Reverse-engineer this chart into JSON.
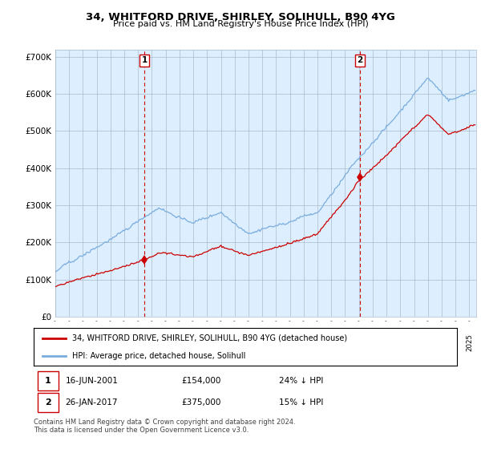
{
  "title": "34, WHITFORD DRIVE, SHIRLEY, SOLIHULL, B90 4YG",
  "subtitle": "Price paid vs. HM Land Registry's House Price Index (HPI)",
  "ylim": [
    0,
    720000
  ],
  "xlim_start": 1995.0,
  "xlim_end": 2025.5,
  "hpi_color": "#7aaddd",
  "price_color": "#cc0000",
  "transaction1_date": 2001.458,
  "transaction1_price": 154000,
  "transaction2_date": 2017.07,
  "transaction2_price": 375000,
  "legend_property": "34, WHITFORD DRIVE, SHIRLEY, SOLIHULL, B90 4YG (detached house)",
  "legend_hpi": "HPI: Average price, detached house, Solihull",
  "footnote": "Contains HM Land Registry data © Crown copyright and database right 2024.\nThis data is licensed under the Open Government Licence v3.0.",
  "background_color": "#ffffff",
  "plot_bg_color": "#ddeeff",
  "grid_color": "#aabbcc"
}
